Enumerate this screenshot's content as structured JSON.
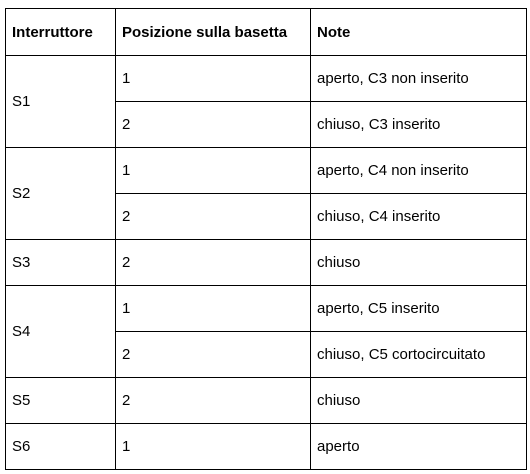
{
  "table": {
    "headers": [
      "Interruttore",
      "Posizione sulla basetta",
      "Note"
    ],
    "rows": [
      {
        "switch": "S1",
        "entries": [
          {
            "position": "1",
            "note": "aperto, C3 non inserito"
          },
          {
            "position": "2",
            "note": "chiuso, C3 inserito"
          }
        ]
      },
      {
        "switch": "S2",
        "entries": [
          {
            "position": "1",
            "note": "aperto, C4 non inserito"
          },
          {
            "position": "2",
            "note": "chiuso, C4 inserito"
          }
        ]
      },
      {
        "switch": "S3",
        "entries": [
          {
            "position": "2",
            "note": "chiuso"
          }
        ]
      },
      {
        "switch": "S4",
        "entries": [
          {
            "position": "1",
            "note": "aperto, C5 inserito"
          },
          {
            "position": "2",
            "note": "chiuso, C5 cortocircuitato"
          }
        ]
      },
      {
        "switch": "S5",
        "entries": [
          {
            "position": "2",
            "note": "chiuso"
          }
        ]
      },
      {
        "switch": "S6",
        "entries": [
          {
            "position": "1",
            "note": "aperto"
          }
        ]
      }
    ]
  }
}
